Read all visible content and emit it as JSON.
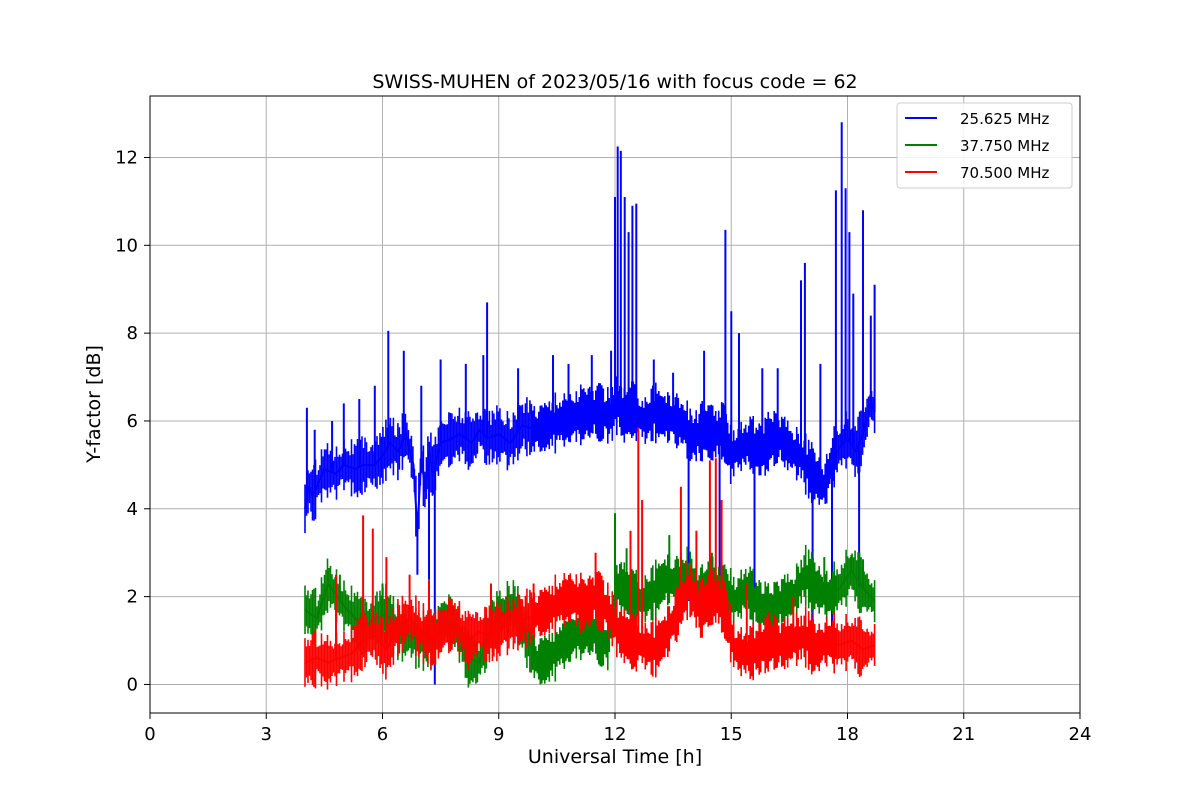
{
  "chart_data": {
    "type": "line",
    "title": "SWISS-MUHEN of 2023/05/16 with focus code = 62",
    "xlabel": "Universal Time [h]",
    "ylabel": "Y-factor [dB]",
    "xlim": [
      0,
      24
    ],
    "ylim": [
      -0.65,
      13.4
    ],
    "xticks": [
      0,
      3,
      6,
      9,
      12,
      15,
      18,
      21,
      24
    ],
    "yticks": [
      0,
      2,
      4,
      6,
      8,
      10,
      12
    ],
    "grid": true,
    "legend_position": "top-right",
    "series": [
      {
        "name": "25.625 MHz",
        "color": "#0000ff",
        "x": [
          4.0,
          4.1,
          4.2,
          4.4,
          4.5,
          4.8,
          5.0,
          5.3,
          5.5,
          5.8,
          6.0,
          6.2,
          6.4,
          6.6,
          6.8,
          6.9,
          7.0,
          7.1,
          7.2,
          7.3,
          7.5,
          7.8,
          8.0,
          8.3,
          8.5,
          8.7,
          9.0,
          9.3,
          9.6,
          10.0,
          10.3,
          10.6,
          11.0,
          11.3,
          11.6,
          11.9,
          12.0,
          12.1,
          12.2,
          12.35,
          12.5,
          12.6,
          12.8,
          13.0,
          13.3,
          13.6,
          13.8,
          14.0,
          14.3,
          14.6,
          14.8,
          15.0,
          15.2,
          15.5,
          15.8,
          16.0,
          16.3,
          16.6,
          16.8,
          17.0,
          17.2,
          17.4,
          17.6,
          17.8,
          17.9,
          18.0,
          18.2,
          18.4,
          18.6,
          18.7
        ],
        "y": [
          4.0,
          4.5,
          4.3,
          4.7,
          4.9,
          4.8,
          5.0,
          4.9,
          5.0,
          5.0,
          5.2,
          5.5,
          5.3,
          5.7,
          5.0,
          3.5,
          5.2,
          4.4,
          5.3,
          4.8,
          5.5,
          5.6,
          5.7,
          5.5,
          5.8,
          5.6,
          5.7,
          5.5,
          5.9,
          5.8,
          5.9,
          6.0,
          6.1,
          6.2,
          6.2,
          6.1,
          6.3,
          6.4,
          6.1,
          6.2,
          6.3,
          6.1,
          6.0,
          6.2,
          6.1,
          6.0,
          5.9,
          5.6,
          5.8,
          5.7,
          5.8,
          5.2,
          5.4,
          5.5,
          5.3,
          5.6,
          5.6,
          5.3,
          5.2,
          4.9,
          4.7,
          4.5,
          5.1,
          5.4,
          5.5,
          5.6,
          5.3,
          5.7,
          6.4,
          6.2
        ],
        "spikes": [
          [
            4.05,
            6.3
          ],
          [
            4.25,
            5.8
          ],
          [
            4.7,
            6.0
          ],
          [
            5.0,
            6.4
          ],
          [
            5.4,
            6.5
          ],
          [
            5.8,
            6.8
          ],
          [
            6.15,
            8.05
          ],
          [
            6.55,
            7.6
          ],
          [
            6.9,
            2.5
          ],
          [
            7.0,
            6.8
          ],
          [
            7.2,
            1.8
          ],
          [
            7.35,
            0.0
          ],
          [
            7.5,
            7.4
          ],
          [
            8.15,
            7.3
          ],
          [
            8.6,
            7.5
          ],
          [
            8.7,
            8.7
          ],
          [
            9.5,
            7.2
          ],
          [
            10.4,
            7.5
          ],
          [
            10.8,
            7.3
          ],
          [
            11.4,
            7.5
          ],
          [
            11.9,
            7.6
          ],
          [
            12.0,
            11.1
          ],
          [
            12.07,
            12.25
          ],
          [
            12.15,
            12.15
          ],
          [
            12.25,
            11.1
          ],
          [
            12.35,
            10.3
          ],
          [
            12.45,
            10.9
          ],
          [
            12.55,
            10.95
          ],
          [
            13.0,
            7.4
          ],
          [
            13.5,
            7.1
          ],
          [
            13.9,
            1.9
          ],
          [
            14.3,
            7.6
          ],
          [
            14.7,
            1.6
          ],
          [
            14.85,
            10.35
          ],
          [
            15.0,
            8.5
          ],
          [
            15.2,
            8.0
          ],
          [
            15.6,
            2.2
          ],
          [
            15.8,
            7.2
          ],
          [
            16.2,
            7.2
          ],
          [
            16.8,
            9.2
          ],
          [
            16.9,
            9.6
          ],
          [
            17.1,
            0.5
          ],
          [
            17.3,
            7.3
          ],
          [
            17.6,
            1.3
          ],
          [
            17.7,
            11.25
          ],
          [
            17.85,
            12.8
          ],
          [
            17.95,
            11.3
          ],
          [
            18.05,
            10.3
          ],
          [
            18.15,
            8.9
          ],
          [
            18.3,
            2.2
          ],
          [
            18.4,
            10.8
          ],
          [
            18.6,
            8.4
          ],
          [
            18.7,
            9.1
          ]
        ]
      },
      {
        "name": "37.750 MHz",
        "color": "#008000",
        "x": [
          4.0,
          4.3,
          4.6,
          4.9,
          5.2,
          5.5,
          5.8,
          6.1,
          6.4,
          6.7,
          7.0,
          7.3,
          7.6,
          7.9,
          8.2,
          8.5,
          8.8,
          9.1,
          9.4,
          9.7,
          10.0,
          10.3,
          10.6,
          10.9,
          11.2,
          11.5,
          11.8,
          12.1,
          12.4,
          12.7,
          13.0,
          13.3,
          13.6,
          13.9,
          14.2,
          14.5,
          14.8,
          15.1,
          15.4,
          15.7,
          16.0,
          16.3,
          16.6,
          16.9,
          17.2,
          17.5,
          17.8,
          18.1,
          18.4,
          18.7
        ],
        "y": [
          1.7,
          1.5,
          2.3,
          1.9,
          1.6,
          1.3,
          1.5,
          1.6,
          1.2,
          1.1,
          1.0,
          1.0,
          1.5,
          1.3,
          0.6,
          0.5,
          1.3,
          1.6,
          1.8,
          1.1,
          0.5,
          0.6,
          0.9,
          1.1,
          1.3,
          1.2,
          0.9,
          2.3,
          2.0,
          1.9,
          2.1,
          2.4,
          2.3,
          2.5,
          2.0,
          2.3,
          2.1,
          1.9,
          2.2,
          1.8,
          1.6,
          1.9,
          2.0,
          2.5,
          2.2,
          2.0,
          2.2,
          2.6,
          2.2,
          1.9
        ],
        "spikes": [
          [
            4.6,
            2.65
          ],
          [
            4.9,
            2.5
          ],
          [
            6.0,
            2.3
          ],
          [
            12.0,
            3.9
          ],
          [
            12.3,
            3.1
          ],
          [
            13.4,
            3.4
          ],
          [
            13.7,
            3.0
          ],
          [
            14.5,
            3.0
          ],
          [
            16.9,
            2.9
          ],
          [
            17.4,
            2.9
          ],
          [
            18.1,
            2.95
          ],
          [
            18.4,
            2.85
          ]
        ]
      },
      {
        "name": "70.500 MHz",
        "color": "#ff0000",
        "x": [
          4.0,
          4.3,
          4.6,
          4.9,
          5.2,
          5.5,
          5.8,
          6.1,
          6.4,
          6.7,
          7.0,
          7.3,
          7.6,
          7.9,
          8.2,
          8.5,
          8.8,
          9.1,
          9.4,
          9.7,
          10.0,
          10.3,
          10.6,
          10.9,
          11.2,
          11.5,
          11.8,
          12.1,
          12.4,
          12.7,
          13.0,
          13.3,
          13.6,
          13.9,
          14.2,
          14.5,
          14.8,
          15.1,
          15.4,
          15.7,
          16.0,
          16.3,
          16.6,
          16.9,
          17.2,
          17.5,
          17.8,
          18.1,
          18.4,
          18.7
        ],
        "y": [
          0.5,
          0.6,
          0.5,
          0.6,
          0.7,
          1.0,
          1.1,
          0.8,
          1.3,
          1.5,
          1.2,
          1.0,
          1.3,
          1.4,
          1.0,
          1.2,
          1.1,
          1.3,
          1.4,
          1.5,
          1.6,
          1.7,
          1.9,
          2.0,
          1.8,
          2.0,
          1.7,
          1.2,
          1.0,
          0.9,
          0.8,
          1.1,
          1.6,
          2.2,
          1.7,
          2.0,
          1.8,
          0.8,
          0.7,
          0.8,
          1.0,
          0.9,
          1.0,
          1.1,
          0.8,
          1.0,
          0.9,
          1.0,
          0.8,
          0.9
        ],
        "spikes": [
          [
            4.8,
            2.5
          ],
          [
            5.5,
            3.85
          ],
          [
            5.75,
            3.55
          ],
          [
            6.1,
            2.9
          ],
          [
            6.7,
            2.5
          ],
          [
            7.2,
            2.4
          ],
          [
            8.8,
            2.3
          ],
          [
            9.9,
            2.3
          ],
          [
            11.5,
            3.0
          ],
          [
            12.4,
            3.5
          ],
          [
            12.6,
            5.85
          ],
          [
            12.7,
            4.2
          ],
          [
            13.7,
            4.5
          ],
          [
            14.1,
            3.5
          ],
          [
            14.45,
            5.1
          ],
          [
            14.6,
            5.15
          ],
          [
            14.75,
            4.2
          ],
          [
            15.4,
            2.3
          ],
          [
            16.6,
            2.0
          ]
        ]
      }
    ]
  }
}
